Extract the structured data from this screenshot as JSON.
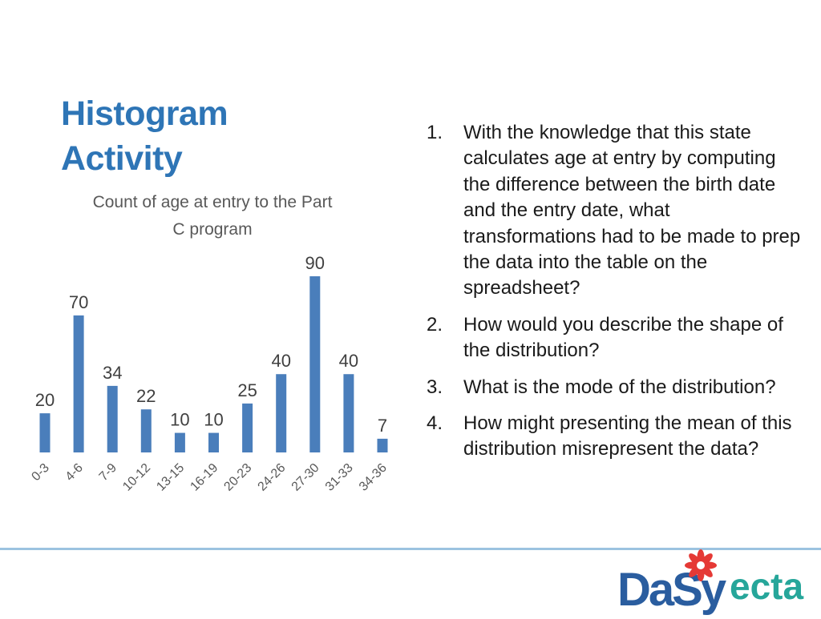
{
  "slide": {
    "title_lines": [
      "Histogram",
      "Activity"
    ]
  },
  "questions": [
    {
      "num": "1.",
      "text": "With the knowledge that this state calculates age at entry by computing the difference between the birth date and the entry date, what transformations had to be made to prep the data into the table on the spreadsheet?"
    },
    {
      "num": "2.",
      "text": "How would you describe the shape of the distribution?"
    },
    {
      "num": "3.",
      "text": "What is the mode of the distribution?"
    },
    {
      "num": "4.",
      "text": "How might presenting the mean of this distribution misrepresent the data?"
    }
  ],
  "logos": {
    "dasy": "DaSy",
    "ecta": "ecta"
  },
  "colors": {
    "bar": "#4a7ebb",
    "title": "#2e75b6",
    "dasy_blue": "#2a5d9f",
    "dasy_green": "#4caf50",
    "star_red": "#e53935",
    "ecta_green": "#26a69a",
    "ecta_blue": "#2e7bbf"
  },
  "chart_data": {
    "type": "bar",
    "title": "Count of age at entry to the Part C program",
    "title_lines": [
      "Count of age at entry to the Part",
      "C program"
    ],
    "categories": [
      "0-3",
      "4-6",
      "7-9",
      "10-12",
      "13-15",
      "16-19",
      "20-23",
      "24-26",
      "27-30",
      "31-33",
      "34-36"
    ],
    "values": [
      20,
      70,
      34,
      22,
      10,
      10,
      25,
      40,
      90,
      40,
      7
    ],
    "ylim": [
      0,
      90
    ],
    "grid": false,
    "legend": "none",
    "data_labels": true
  }
}
